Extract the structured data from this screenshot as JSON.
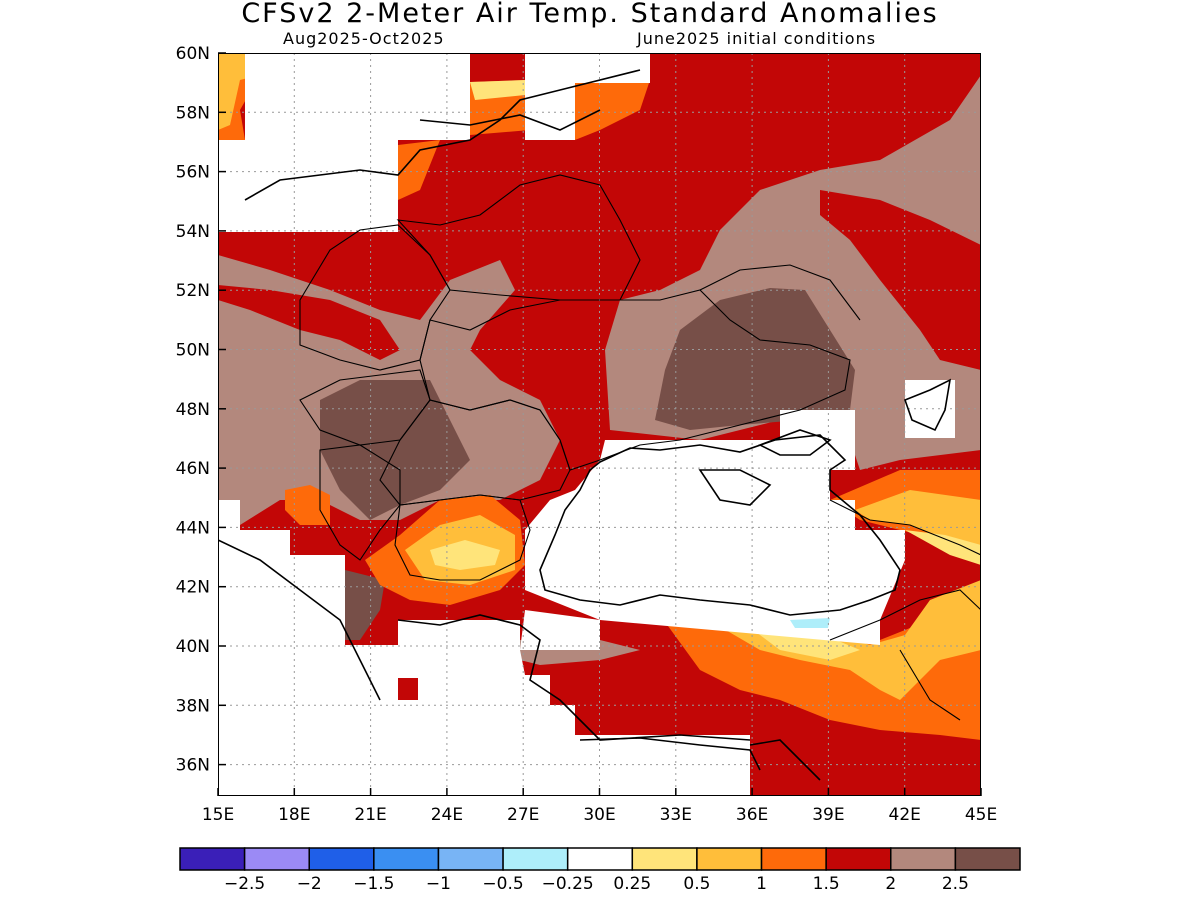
{
  "title": "CFSv2 2-Meter Air Temp. Standard Anomalies",
  "subtitle_period": "Aug2025-Oct2025",
  "subtitle_conditions": "June2025 initial conditions",
  "lat_ticks": [
    "60N",
    "58N",
    "56N",
    "54N",
    "52N",
    "50N",
    "48N",
    "46N",
    "44N",
    "42N",
    "40N",
    "38N",
    "36N"
  ],
  "lon_ticks": [
    "15E",
    "18E",
    "21E",
    "24E",
    "27E",
    "30E",
    "33E",
    "36E",
    "39E",
    "42E",
    "45E"
  ],
  "colorbar": {
    "colors": [
      "#3a1fb8",
      "#9b8af5",
      "#1f5fe8",
      "#3a8ff2",
      "#78b4f5",
      "#aeeefa",
      "#ffffff",
      "#ffe47a",
      "#ffbe3a",
      "#fe6a0a",
      "#c20606",
      "#b3887d",
      "#774f48"
    ],
    "labels": [
      "-2.5",
      "-2",
      "-1.5",
      "-1",
      "-0.5",
      "-0.25",
      "0.25",
      "0.5",
      "1",
      "1.5",
      "2",
      "2.5"
    ]
  },
  "colors": {
    "strong_positive": "#c20606",
    "very_strong_positive": "#774f48",
    "extreme_positive": "#b3887d",
    "moderate_positive": "#fe6a0a",
    "mild_positive": "#ffbe3a",
    "weak_positive": "#ffe47a",
    "coastline": "#000000"
  }
}
